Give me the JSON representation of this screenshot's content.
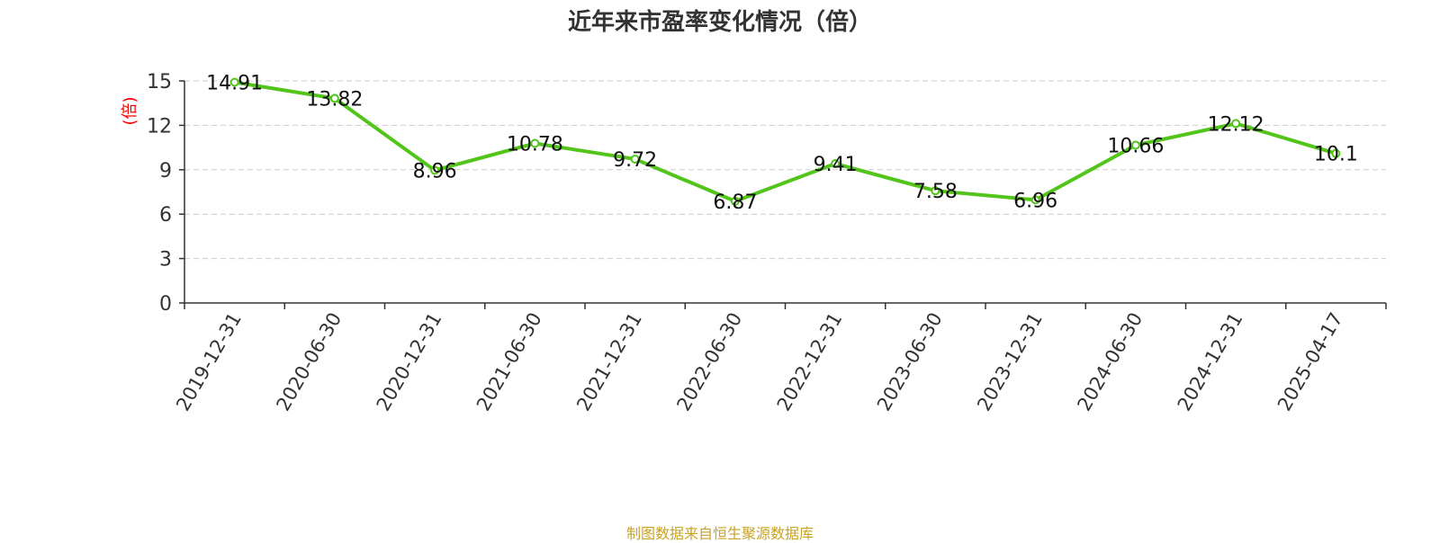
{
  "chart_data": {
    "type": "line",
    "title": "近年来市盈率变化情况（倍）",
    "ylabel": "(倍)",
    "xlabel": "",
    "categories": [
      "2019-12-31",
      "2020-06-30",
      "2020-12-31",
      "2021-06-30",
      "2021-12-31",
      "2022-06-30",
      "2022-12-31",
      "2023-06-30",
      "2023-12-31",
      "2024-06-30",
      "2024-12-31",
      "2025-04-17"
    ],
    "values": [
      14.91,
      13.82,
      8.96,
      10.78,
      9.72,
      6.87,
      9.41,
      7.58,
      6.96,
      10.66,
      12.12,
      10.1
    ],
    "value_labels": [
      "14.91",
      "13.82",
      "8.96",
      "10.78",
      "9.72",
      "6.87",
      "9.41",
      "7.58",
      "6.96",
      "10.66",
      "12.12",
      "10.1"
    ],
    "yticks": [
      0,
      3,
      6,
      9,
      12,
      15
    ],
    "ylim": [
      0,
      15
    ],
    "grid": "horizontal dashed",
    "line_color": "#52c41a",
    "ylabel_color": "#ff0000"
  },
  "footer": {
    "source": "制图数据来自恒生聚源数据库"
  }
}
